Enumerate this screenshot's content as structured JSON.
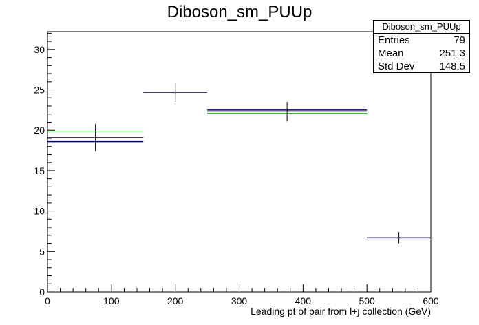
{
  "chart_data": {
    "type": "histogram",
    "title": "Diboson_sm_PUUp",
    "xlabel": "Leading pt of pair from l+j collection (GeV)",
    "ylabel": "",
    "xlim": [
      0,
      600
    ],
    "ylim": [
      0,
      32.2
    ],
    "x_ticks": [
      0,
      100,
      200,
      300,
      400,
      500,
      600
    ],
    "y_ticks": [
      0,
      5,
      10,
      15,
      20,
      25,
      30
    ],
    "bins": [
      [
        0,
        150
      ],
      [
        150,
        250
      ],
      [
        250,
        500
      ],
      [
        500,
        600
      ]
    ],
    "series": [
      {
        "color": "#000000",
        "values": [
          19.1,
          24.7,
          22.3,
          6.7
        ],
        "errors": [
          1.7,
          1.2,
          1.2,
          0.7
        ]
      },
      {
        "color": "#00008b",
        "values": [
          18.6,
          24.7,
          22.5,
          6.7
        ]
      },
      {
        "color": "#00cc00",
        "values": [
          19.8,
          24.7,
          22.1,
          6.7
        ]
      }
    ],
    "grid": false,
    "stats": {
      "name": "Diboson_sm_PUUp",
      "rows": [
        {
          "label": "Entries",
          "value": "79"
        },
        {
          "label": "Mean",
          "value": "251.3"
        },
        {
          "label": "Std Dev",
          "value": "148.5"
        }
      ]
    }
  }
}
